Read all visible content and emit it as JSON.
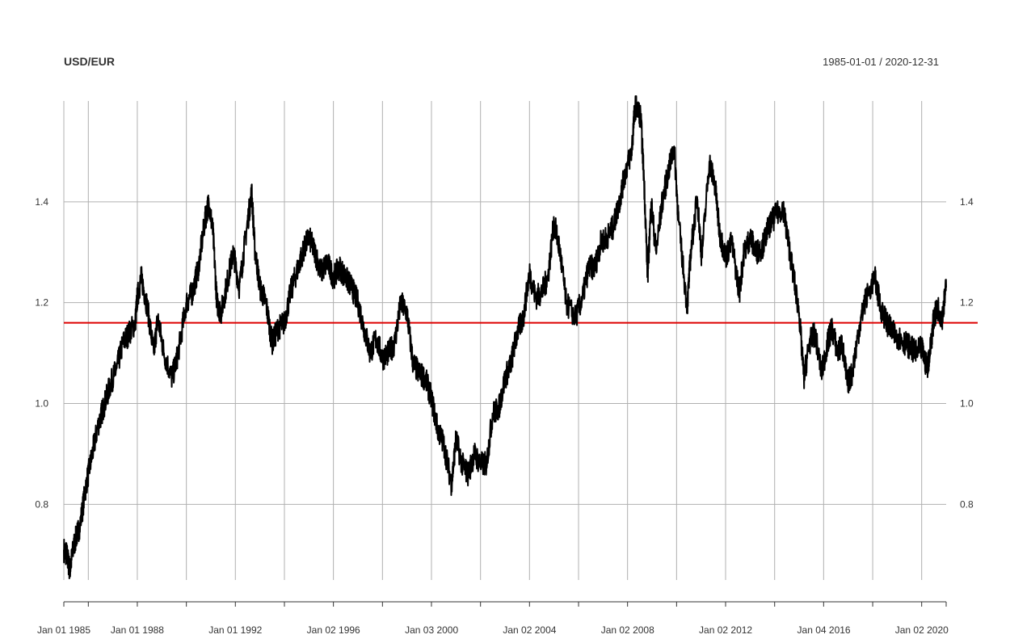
{
  "chart_data": {
    "type": "line",
    "title": "USD/EUR",
    "date_range_label": "1985-01-01 / 2020-12-31",
    "xlabel": "",
    "ylabel": "",
    "x_range": [
      "1985-01-01",
      "2020-12-31"
    ],
    "ylim": [
      0.65,
      1.6
    ],
    "y_ticks": [
      0.8,
      1.0,
      1.2,
      1.4
    ],
    "y_tick_labels": [
      "0.8",
      "1.0",
      "1.2",
      "1.4"
    ],
    "x_tick_labels": [
      {
        "date": "1985-01-01",
        "label": "Jan 01 1985"
      },
      {
        "date": "1988-01-01",
        "label": "Jan 01 1988"
      },
      {
        "date": "1992-01-01",
        "label": "Jan 01 1992"
      },
      {
        "date": "1996-01-02",
        "label": "Jan 02 1996"
      },
      {
        "date": "2000-01-03",
        "label": "Jan 03 2000"
      },
      {
        "date": "2004-01-02",
        "label": "Jan 02 2004"
      },
      {
        "date": "2008-01-02",
        "label": "Jan 02 2008"
      },
      {
        "date": "2012-01-02",
        "label": "Jan 02 2012"
      },
      {
        "date": "2016-01-04",
        "label": "Jan 04 2016"
      },
      {
        "date": "2020-01-02",
        "label": "Jan 02 2020"
      }
    ],
    "gridlines": true,
    "reference_line": {
      "y": 1.16,
      "color": "#dd0000"
    },
    "series": [
      {
        "color": "#000000",
        "x": [
          "1985-01-01",
          "1985-02-15",
          "1985-04-01",
          "1985-06-01",
          "1985-09-01",
          "1985-12-01",
          "1986-03-01",
          "1986-06-01",
          "1986-09-01",
          "1986-12-01",
          "1987-03-01",
          "1987-06-01",
          "1987-09-01",
          "1987-12-01",
          "1988-01-01",
          "1988-03-01",
          "1988-06-01",
          "1988-09-01",
          "1988-11-01",
          "1989-02-01",
          "1989-06-01",
          "1989-09-01",
          "1990-01-01",
          "1990-04-01",
          "1990-07-01",
          "1990-10-01",
          "1990-12-01",
          "1991-02-01",
          "1991-04-01",
          "1991-06-01",
          "1991-09-01",
          "1991-12-01",
          "1992-03-01",
          "1992-06-01",
          "1992-09-01",
          "1992-10-15",
          "1993-01-01",
          "1993-04-01",
          "1993-07-01",
          "1993-10-01",
          "1994-01-01",
          "1994-04-01",
          "1994-07-01",
          "1994-10-01",
          "1995-01-01",
          "1995-04-01",
          "1995-07-01",
          "1995-10-01",
          "1996-01-01",
          "1996-04-01",
          "1996-07-01",
          "1996-10-01",
          "1997-01-01",
          "1997-04-01",
          "1997-07-01",
          "1997-10-01",
          "1998-01-01",
          "1998-04-01",
          "1998-07-01",
          "1998-10-01",
          "1999-01-01",
          "1999-04-01",
          "1999-07-01",
          "1999-10-01",
          "2000-01-01",
          "2000-04-01",
          "2000-07-01",
          "2000-10-26",
          "2001-01-01",
          "2001-04-01",
          "2001-07-01",
          "2001-10-01",
          "2002-01-01",
          "2002-04-01",
          "2002-07-01",
          "2002-10-01",
          "2003-01-01",
          "2003-04-01",
          "2003-07-01",
          "2003-10-01",
          "2004-01-01",
          "2004-04-01",
          "2004-07-01",
          "2004-10-01",
          "2004-12-31",
          "2005-04-01",
          "2005-07-01",
          "2005-11-15",
          "2006-03-01",
          "2006-06-01",
          "2006-09-01",
          "2006-12-01",
          "2007-03-01",
          "2007-06-01",
          "2007-09-01",
          "2007-12-01",
          "2008-03-01",
          "2008-04-22",
          "2008-07-15",
          "2008-09-01",
          "2008-10-27",
          "2008-12-18",
          "2009-03-01",
          "2009-06-01",
          "2009-09-01",
          "2009-11-25",
          "2010-02-01",
          "2010-06-07",
          "2010-08-01",
          "2010-11-04",
          "2011-01-10",
          "2011-05-04",
          "2011-08-01",
          "2011-10-01",
          "2012-01-01",
          "2012-04-01",
          "2012-07-24",
          "2012-10-01",
          "2013-01-01",
          "2013-04-01",
          "2013-07-01",
          "2013-10-01",
          "2014-01-01",
          "2014-05-06",
          "2014-07-01",
          "2014-10-01",
          "2015-01-01",
          "2015-03-13",
          "2015-06-01",
          "2015-08-24",
          "2015-12-01",
          "2016-03-01",
          "2016-05-01",
          "2016-08-01",
          "2016-10-01",
          "2016-12-20",
          "2017-03-01",
          "2017-06-01",
          "2017-09-01",
          "2018-02-01",
          "2018-05-01",
          "2018-08-01",
          "2018-11-01",
          "2019-02-01",
          "2019-05-01",
          "2019-08-01",
          "2019-10-01",
          "2020-01-01",
          "2020-03-20",
          "2020-05-01",
          "2020-07-01",
          "2020-09-01",
          "2020-11-01",
          "2020-12-31"
        ],
        "values": [
          0.71,
          0.7,
          0.67,
          0.72,
          0.76,
          0.84,
          0.9,
          0.96,
          1.0,
          1.04,
          1.07,
          1.12,
          1.14,
          1.16,
          1.21,
          1.25,
          1.19,
          1.1,
          1.17,
          1.1,
          1.05,
          1.1,
          1.2,
          1.22,
          1.27,
          1.36,
          1.4,
          1.34,
          1.2,
          1.18,
          1.24,
          1.3,
          1.23,
          1.33,
          1.42,
          1.31,
          1.23,
          1.2,
          1.12,
          1.15,
          1.16,
          1.22,
          1.26,
          1.3,
          1.33,
          1.3,
          1.26,
          1.28,
          1.25,
          1.27,
          1.25,
          1.23,
          1.2,
          1.15,
          1.1,
          1.13,
          1.09,
          1.1,
          1.12,
          1.2,
          1.18,
          1.08,
          1.06,
          1.05,
          1.01,
          0.95,
          0.92,
          0.84,
          0.93,
          0.88,
          0.86,
          0.9,
          0.88,
          0.88,
          0.98,
          0.99,
          1.05,
          1.08,
          1.14,
          1.17,
          1.26,
          1.21,
          1.22,
          1.25,
          1.36,
          1.3,
          1.2,
          1.17,
          1.21,
          1.27,
          1.27,
          1.32,
          1.33,
          1.35,
          1.4,
          1.46,
          1.5,
          1.59,
          1.57,
          1.45,
          1.25,
          1.4,
          1.3,
          1.4,
          1.46,
          1.51,
          1.36,
          1.19,
          1.3,
          1.41,
          1.29,
          1.48,
          1.43,
          1.34,
          1.29,
          1.32,
          1.22,
          1.3,
          1.33,
          1.3,
          1.31,
          1.35,
          1.37,
          1.39,
          1.34,
          1.26,
          1.18,
          1.05,
          1.12,
          1.14,
          1.06,
          1.12,
          1.15,
          1.1,
          1.12,
          1.04,
          1.06,
          1.14,
          1.2,
          1.25,
          1.19,
          1.16,
          1.14,
          1.13,
          1.12,
          1.11,
          1.1,
          1.11,
          1.07,
          1.1,
          1.17,
          1.19,
          1.17,
          1.23
        ]
      }
    ]
  }
}
